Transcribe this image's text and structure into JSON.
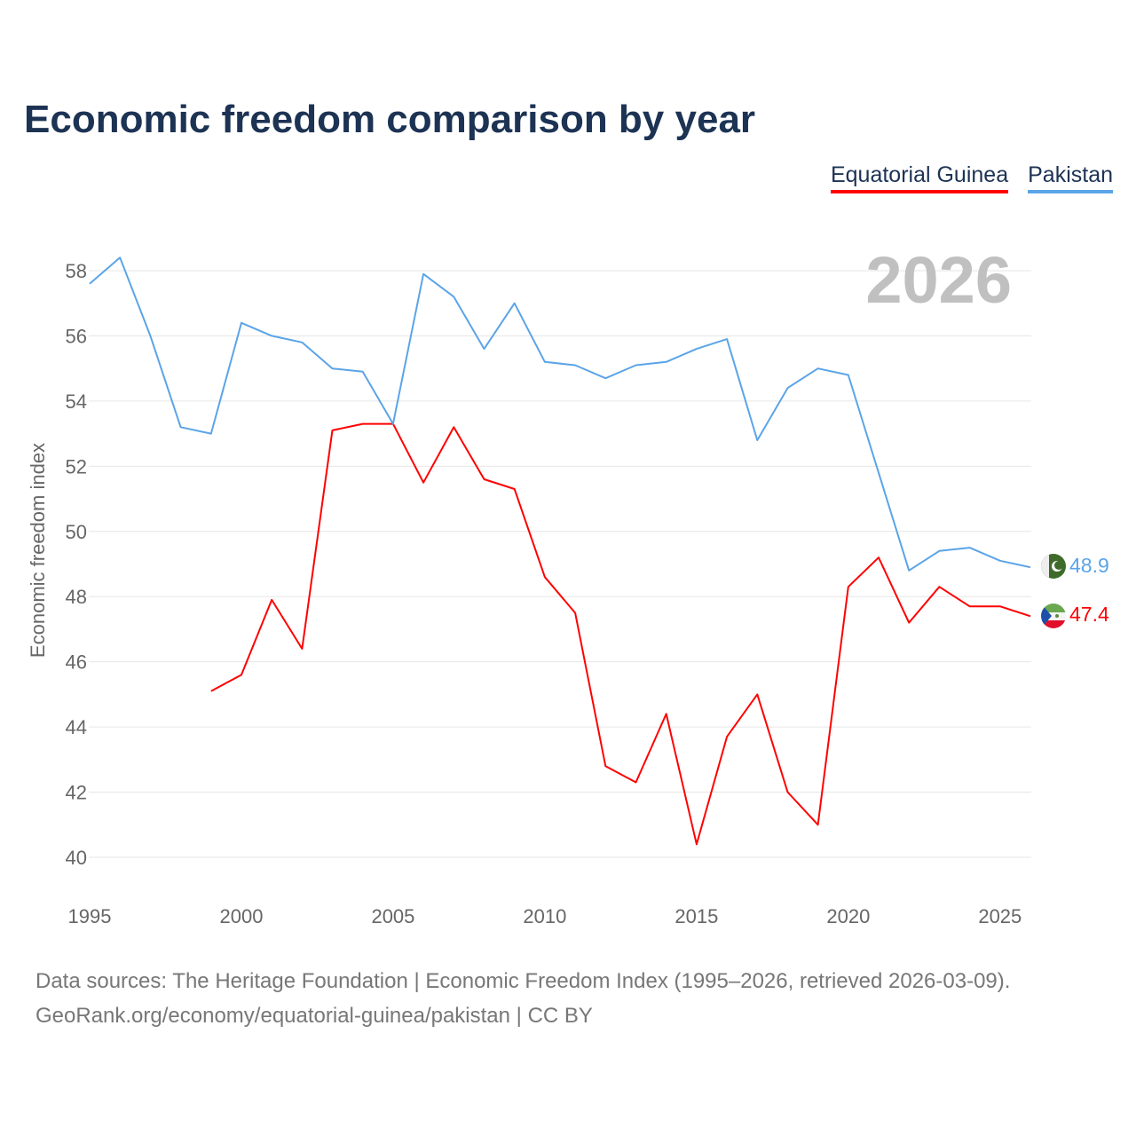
{
  "chart_data": {
    "type": "line",
    "title": "Economic freedom comparison by year",
    "xlabel": "",
    "ylabel": "Economic freedom index",
    "xlim": [
      1995,
      2026
    ],
    "ylim": [
      40,
      58
    ],
    "xticks": [
      "1995",
      "2000",
      "2005",
      "2010",
      "2015",
      "2020",
      "2025"
    ],
    "yticks": [
      "40",
      "42",
      "44",
      "46",
      "48",
      "50",
      "52",
      "54",
      "56",
      "58"
    ],
    "year_label": "2026",
    "legend_placement": "top-right",
    "grid": true,
    "series": [
      {
        "name": "Equatorial Guinea",
        "color": "#ff0000",
        "end_label": "47.4",
        "x": [
          1999,
          2000,
          2001,
          2002,
          2003,
          2004,
          2005,
          2006,
          2007,
          2008,
          2009,
          2010,
          2011,
          2012,
          2013,
          2014,
          2015,
          2016,
          2017,
          2018,
          2019,
          2020,
          2021,
          2022,
          2023,
          2024,
          2025,
          2026
        ],
        "values": [
          45.1,
          45.6,
          47.9,
          46.4,
          53.1,
          53.3,
          53.3,
          51.5,
          53.2,
          51.6,
          51.3,
          48.6,
          47.5,
          42.8,
          42.3,
          44.4,
          40.4,
          43.7,
          45.0,
          42.0,
          41.0,
          48.3,
          49.2,
          47.2,
          48.3,
          47.7,
          47.7,
          47.4
        ]
      },
      {
        "name": "Pakistan",
        "color": "#5ba4e8",
        "end_label": "48.9",
        "x": [
          1995,
          1996,
          1997,
          1998,
          1999,
          2000,
          2001,
          2002,
          2003,
          2004,
          2005,
          2006,
          2007,
          2008,
          2009,
          2010,
          2011,
          2012,
          2013,
          2014,
          2015,
          2016,
          2017,
          2018,
          2019,
          2020,
          2021,
          2022,
          2023,
          2024,
          2025,
          2026
        ],
        "values": [
          57.6,
          58.4,
          56.0,
          53.2,
          53.0,
          56.4,
          56.0,
          55.8,
          55.0,
          54.9,
          53.3,
          57.9,
          57.2,
          55.6,
          57.0,
          55.2,
          55.1,
          54.7,
          55.1,
          55.2,
          55.6,
          55.9,
          52.8,
          54.4,
          55.0,
          54.8,
          51.8,
          48.8,
          49.4,
          49.5,
          49.1,
          48.9
        ]
      }
    ]
  },
  "footer": {
    "line1": "Data sources: The Heritage Foundation | Economic Freedom Index (1995–2026, retrieved 2026-03-09).",
    "line2": "GeoRank.org/economy/equatorial-guinea/pakistan | CC BY"
  }
}
